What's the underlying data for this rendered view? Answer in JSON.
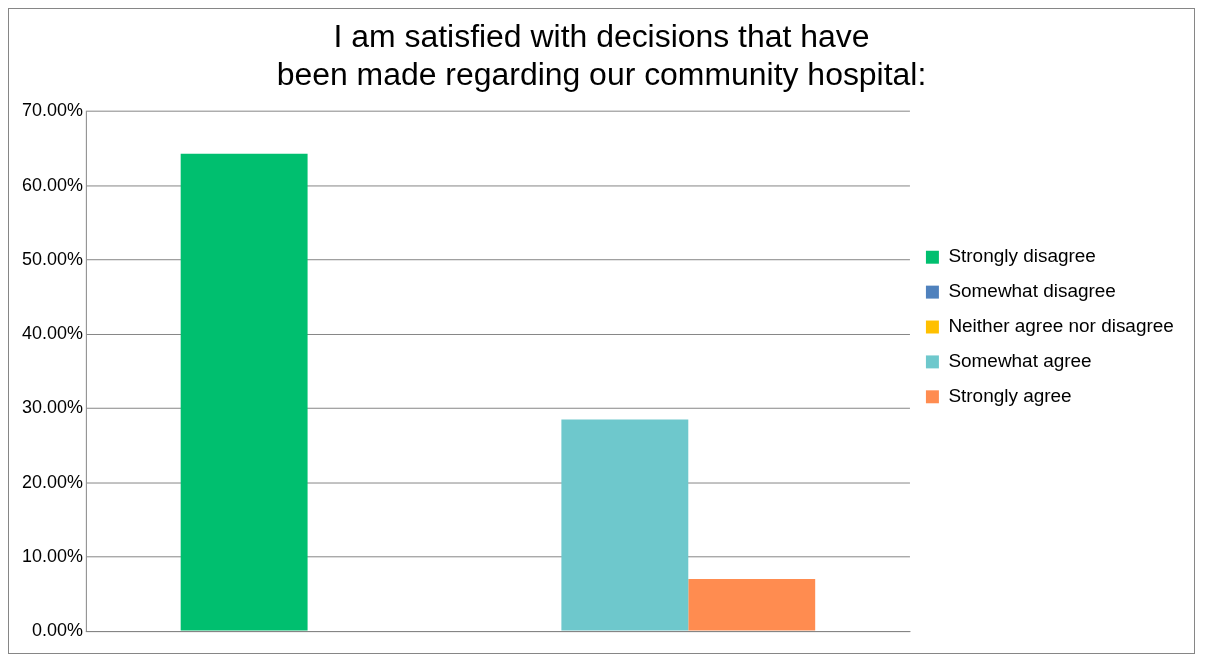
{
  "chart_data": {
    "type": "bar",
    "title": "I am satisfied with decisions that have been made regarding our community hospital:",
    "categories": [
      null
    ],
    "series": [
      {
        "name": "Strongly disagree",
        "color": "#00bf6f",
        "values": [
          64.3
        ]
      },
      {
        "name": "Somewhat disagree",
        "color": "#4f81bd",
        "values": [
          0
        ]
      },
      {
        "name": "Neither agree nor disagree",
        "color": "#ffc000",
        "values": [
          0
        ]
      },
      {
        "name": "Somewhat agree",
        "color": "#6ec8cc",
        "values": [
          28.5
        ]
      },
      {
        "name": "Strongly agree",
        "color": "#ff8c50",
        "values": [
          7.0
        ]
      }
    ],
    "ylim": [
      0,
      70
    ],
    "yticks": [
      {
        "value": 0,
        "label": "0.00%"
      },
      {
        "value": 10,
        "label": "10.00%"
      },
      {
        "value": 20,
        "label": "20.00%"
      },
      {
        "value": 30,
        "label": "30.00%"
      },
      {
        "value": 40,
        "label": "40.00%"
      },
      {
        "value": 50,
        "label": "50.00%"
      },
      {
        "value": 60,
        "label": "60.00%"
      },
      {
        "value": 70,
        "label": "70.00%"
      }
    ],
    "grid": "y",
    "legend": "right",
    "tick_labels": "y"
  }
}
